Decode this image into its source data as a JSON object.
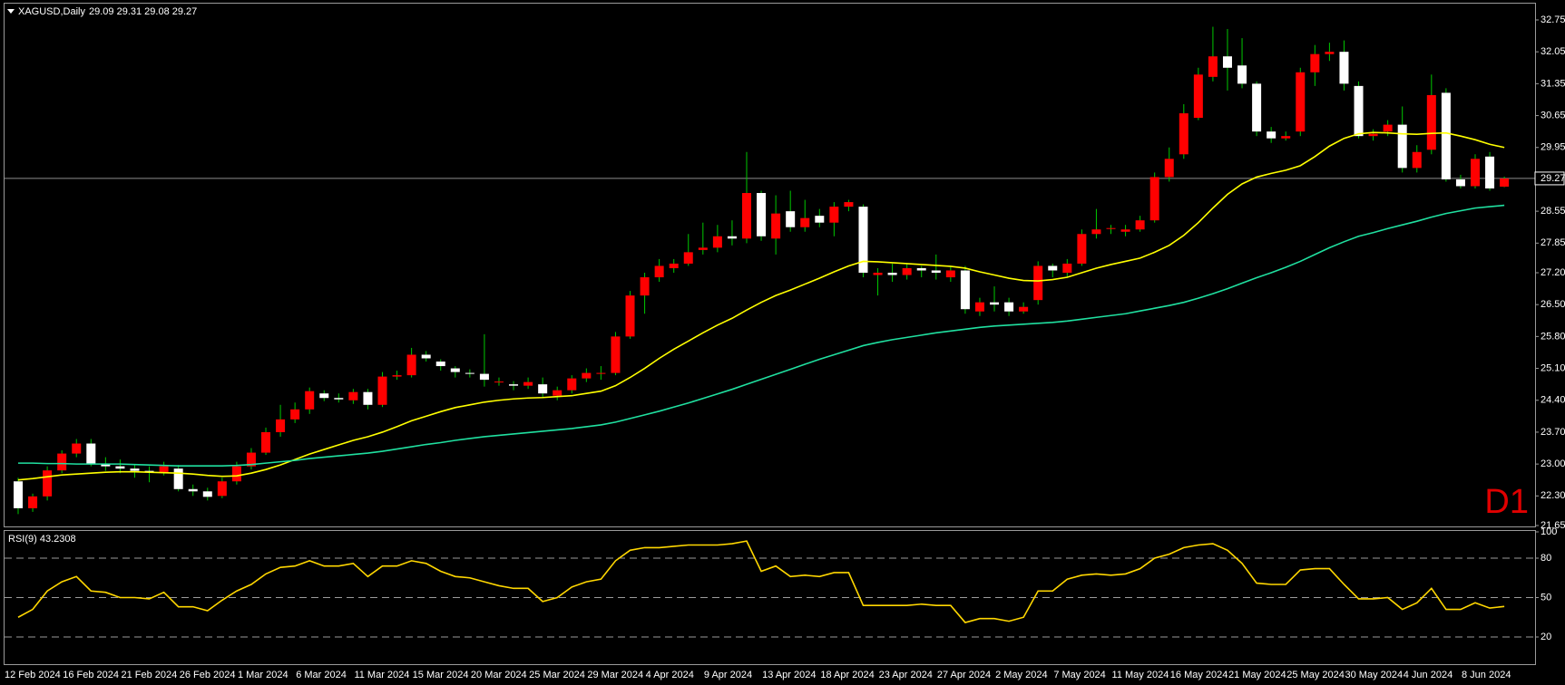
{
  "chart_data": [
    {
      "type": "candlestick",
      "title": "XAGUSD,Daily",
      "subtitle": "29.09 29.31 29.08 29.27",
      "annotation": "D1",
      "categories": [
        "12 Feb 2024",
        null,
        null,
        null,
        "16 Feb 2024",
        null,
        null,
        null,
        "21 Feb 2024",
        null,
        null,
        null,
        "26 Feb 2024",
        null,
        null,
        null,
        "1 Mar 2024",
        null,
        null,
        null,
        "6 Mar 2024",
        null,
        null,
        null,
        "11 Mar 2024",
        null,
        null,
        null,
        "15 Mar 2024",
        null,
        null,
        null,
        "20 Mar 2024",
        null,
        null,
        null,
        "25 Mar 2024",
        null,
        null,
        null,
        "29 Mar 2024",
        null,
        null,
        null,
        "4 Apr 2024",
        null,
        null,
        null,
        "9 Apr 2024",
        null,
        null,
        null,
        "13 Apr 2024",
        null,
        null,
        null,
        "18 Apr 2024",
        null,
        null,
        null,
        "23 Apr 2024",
        null,
        null,
        null,
        "27 Apr 2024",
        null,
        null,
        null,
        "2 May 2024",
        null,
        null,
        null,
        "7 May 2024",
        null,
        null,
        null,
        "11 May 2024",
        null,
        null,
        null,
        "16 May 2024",
        null,
        null,
        null,
        "21 May 2024",
        null,
        null,
        null,
        "25 May 2024",
        null,
        null,
        null,
        "30 May 2024",
        null,
        null,
        null,
        "4 Jun 2024",
        null,
        null,
        null,
        "8 Jun 2024",
        null,
        null
      ],
      "open": [
        22.62,
        22.03,
        22.29,
        22.86,
        23.23,
        23.45,
        23.0,
        22.95,
        22.9,
        22.85,
        22.82,
        22.9,
        22.45,
        22.4,
        22.3,
        22.62,
        22.95,
        23.25,
        23.7,
        23.98,
        24.2,
        24.55,
        24.45,
        24.4,
        24.58,
        24.3,
        24.92,
        24.95,
        25.4,
        25.25,
        25.1,
        25.0,
        24.98,
        24.8,
        24.75,
        24.72,
        24.75,
        24.5,
        24.62,
        24.88,
        24.98,
        25.0,
        25.8,
        26.7,
        27.1,
        27.3,
        27.4,
        27.7,
        27.75,
        28.0,
        27.95,
        28.95,
        27.95,
        28.55,
        28.2,
        28.45,
        28.3,
        28.65,
        28.65,
        27.15,
        27.2,
        27.15,
        27.3,
        27.25,
        27.1,
        27.25,
        26.35,
        26.55,
        26.55,
        26.35,
        26.6,
        27.35,
        27.2,
        27.4,
        28.05,
        28.17,
        28.1,
        28.15,
        28.35,
        29.3,
        29.8,
        30.6,
        31.5,
        31.95,
        31.75,
        31.35,
        30.3,
        30.15,
        30.3,
        31.6,
        32.0,
        32.05,
        31.3,
        30.2,
        30.3,
        30.45,
        29.5,
        29.9,
        31.15,
        29.25,
        29.1,
        29.75,
        29.09
      ],
      "high": [
        22.7,
        22.35,
        22.95,
        23.3,
        23.55,
        23.55,
        23.15,
        23.1,
        23.0,
        22.95,
        23.05,
        22.98,
        22.55,
        22.48,
        22.7,
        23.05,
        23.35,
        23.8,
        24.3,
        24.35,
        24.68,
        24.62,
        24.55,
        24.65,
        24.65,
        25.02,
        25.05,
        25.55,
        25.48,
        25.3,
        25.15,
        25.08,
        25.85,
        24.9,
        24.82,
        24.9,
        24.9,
        24.7,
        24.95,
        25.1,
        25.15,
        25.9,
        26.8,
        27.2,
        27.5,
        27.5,
        28.05,
        28.3,
        28.25,
        28.35,
        29.85,
        29.0,
        28.9,
        29.0,
        28.8,
        28.6,
        28.75,
        28.8,
        28.7,
        27.3,
        27.4,
        27.4,
        27.35,
        27.6,
        27.35,
        27.35,
        26.65,
        26.9,
        26.65,
        26.55,
        27.45,
        27.4,
        27.5,
        28.15,
        28.6,
        28.25,
        28.25,
        28.45,
        29.4,
        29.95,
        30.9,
        31.7,
        32.6,
        32.55,
        32.35,
        31.4,
        30.4,
        30.3,
        31.7,
        32.2,
        32.25,
        32.3,
        31.4,
        30.35,
        30.55,
        30.85,
        30.0,
        31.55,
        31.25,
        29.35,
        29.8,
        29.85,
        29.31
      ],
      "low": [
        21.9,
        21.95,
        22.2,
        22.8,
        23.15,
        22.95,
        22.85,
        22.8,
        22.7,
        22.6,
        22.75,
        22.4,
        22.3,
        22.2,
        22.25,
        22.55,
        22.88,
        23.2,
        23.6,
        23.9,
        24.1,
        24.38,
        24.35,
        24.32,
        24.2,
        24.25,
        24.85,
        24.9,
        25.25,
        25.05,
        24.9,
        24.9,
        24.7,
        24.72,
        24.62,
        24.65,
        24.45,
        24.4,
        24.55,
        24.8,
        24.85,
        24.95,
        25.75,
        26.3,
        27.0,
        27.2,
        27.35,
        27.6,
        27.65,
        27.8,
        27.85,
        27.9,
        27.6,
        28.1,
        28.1,
        28.2,
        28.0,
        28.55,
        27.1,
        26.7,
        27.0,
        27.05,
        27.1,
        27.05,
        27.0,
        26.3,
        26.25,
        26.35,
        26.25,
        26.3,
        26.5,
        27.1,
        27.1,
        27.35,
        27.95,
        28.05,
        28.0,
        28.1,
        28.3,
        29.2,
        29.7,
        30.55,
        31.4,
        31.2,
        31.25,
        30.2,
        30.05,
        30.1,
        30.2,
        31.3,
        31.85,
        31.2,
        30.15,
        30.1,
        30.2,
        29.4,
        29.4,
        29.8,
        29.2,
        29.05,
        29.05,
        29.0,
        29.08
      ],
      "close": [
        22.03,
        22.29,
        22.86,
        23.23,
        23.45,
        23.0,
        22.95,
        22.9,
        22.85,
        22.82,
        22.95,
        22.45,
        22.4,
        22.28,
        22.62,
        22.95,
        23.25,
        23.7,
        23.98,
        24.2,
        24.6,
        24.45,
        24.42,
        24.58,
        24.3,
        24.92,
        24.95,
        25.4,
        25.32,
        25.15,
        25.02,
        24.98,
        24.85,
        24.81,
        24.72,
        24.8,
        24.55,
        24.62,
        24.88,
        25.0,
        25.0,
        25.8,
        26.7,
        27.1,
        27.35,
        27.4,
        27.65,
        27.75,
        28.0,
        27.95,
        28.95,
        28.0,
        28.5,
        28.2,
        28.4,
        28.3,
        28.65,
        28.75,
        27.2,
        27.2,
        27.15,
        27.3,
        27.25,
        27.2,
        27.25,
        26.4,
        26.55,
        26.5,
        26.35,
        26.45,
        27.35,
        27.25,
        27.4,
        28.05,
        28.15,
        28.18,
        28.15,
        28.35,
        29.3,
        29.7,
        30.7,
        31.55,
        31.95,
        31.7,
        31.35,
        30.3,
        30.15,
        30.2,
        31.6,
        32.0,
        32.05,
        31.35,
        30.2,
        30.25,
        30.45,
        29.5,
        29.85,
        31.1,
        29.25,
        29.1,
        29.7,
        29.05,
        29.27
      ],
      "up_color": "#ff0000",
      "down_color": "#ffffff",
      "wick_color": "#00c800",
      "lines": [
        {
          "color": "#ffff00",
          "values": [
            22.65,
            22.68,
            22.72,
            22.76,
            22.78,
            22.8,
            22.82,
            22.83,
            22.83,
            22.82,
            22.81,
            22.8,
            22.78,
            22.75,
            22.73,
            22.74,
            22.8,
            22.88,
            22.98,
            23.1,
            23.22,
            23.32,
            23.42,
            23.52,
            23.6,
            23.7,
            23.82,
            23.95,
            24.05,
            24.15,
            24.24,
            24.3,
            24.36,
            24.4,
            24.43,
            24.45,
            24.46,
            24.48,
            24.5,
            24.55,
            24.6,
            24.72,
            24.9,
            25.1,
            25.32,
            25.52,
            25.7,
            25.88,
            26.05,
            26.2,
            26.38,
            26.55,
            26.7,
            26.82,
            26.95,
            27.08,
            27.22,
            27.35,
            27.45,
            27.44,
            27.42,
            27.4,
            27.38,
            27.36,
            27.34,
            27.3,
            27.22,
            27.15,
            27.08,
            27.03,
            27.02,
            27.05,
            27.1,
            27.2,
            27.3,
            27.38,
            27.45,
            27.52,
            27.65,
            27.8,
            28.02,
            28.3,
            28.62,
            28.92,
            29.15,
            29.3,
            29.38,
            29.45,
            29.55,
            29.75,
            29.98,
            30.15,
            30.25,
            30.28,
            30.27,
            30.25,
            30.24,
            30.26,
            30.27,
            30.2,
            30.12,
            30.02,
            29.95
          ]
        },
        {
          "color": "#20e0a0",
          "values": [
            23.02,
            23.02,
            23.01,
            23.01,
            23.0,
            23.0,
            23.0,
            23.0,
            22.99,
            22.98,
            22.97,
            22.96,
            22.96,
            22.96,
            22.96,
            22.97,
            22.99,
            23.02,
            23.05,
            23.08,
            23.12,
            23.15,
            23.18,
            23.21,
            23.24,
            23.28,
            23.33,
            23.38,
            23.43,
            23.47,
            23.52,
            23.56,
            23.6,
            23.63,
            23.66,
            23.69,
            23.72,
            23.75,
            23.78,
            23.82,
            23.86,
            23.92,
            24.0,
            24.08,
            24.16,
            24.25,
            24.34,
            24.44,
            24.54,
            24.64,
            24.75,
            24.86,
            24.97,
            25.08,
            25.19,
            25.3,
            25.4,
            25.5,
            25.6,
            25.67,
            25.73,
            25.78,
            25.83,
            25.88,
            25.92,
            25.96,
            26.0,
            26.03,
            26.05,
            26.07,
            26.09,
            26.11,
            26.14,
            26.18,
            26.22,
            26.26,
            26.3,
            26.36,
            26.42,
            26.48,
            26.55,
            26.64,
            26.74,
            26.85,
            26.97,
            27.09,
            27.2,
            27.32,
            27.45,
            27.6,
            27.75,
            27.88,
            28.0,
            28.08,
            28.17,
            28.25,
            28.33,
            28.42,
            28.5,
            28.56,
            28.62,
            28.65,
            28.68
          ]
        }
      ],
      "current_price": 29.27,
      "ylim": [
        21.65,
        33.08
      ],
      "yticks": [
        32.75,
        32.05,
        31.35,
        30.65,
        29.95,
        28.55,
        27.85,
        {
          "value": 27.2,
          "label": "27.20"
        },
        {
          "value": 26.5,
          "label": "26.50"
        },
        {
          "value": 25.8,
          "label": "25.80"
        },
        {
          "value": 25.1,
          "label": "25.10"
        },
        {
          "value": 24.4,
          "label": "24.40"
        },
        {
          "value": 23.7,
          "label": "23.70"
        },
        {
          "value": 23,
          "label": "23.00"
        },
        {
          "value": 22.3,
          "label": "22.30"
        },
        21.65
      ]
    },
    {
      "type": "line",
      "title": "RSI(9) 43.2308",
      "color": "#ffd700",
      "values": [
        35,
        41,
        55,
        62,
        66,
        55,
        54,
        50,
        50,
        49,
        54,
        43,
        43,
        40,
        48,
        55,
        60,
        68,
        73,
        74,
        78,
        74,
        74,
        76,
        66,
        74,
        74,
        78,
        76,
        70,
        66,
        65,
        62,
        59,
        57,
        57,
        47,
        50,
        58,
        62,
        64,
        78,
        86,
        88,
        88,
        89,
        90,
        90,
        90,
        91,
        93,
        70,
        74,
        66,
        67,
        66,
        69,
        69,
        44,
        44,
        44,
        44,
        45,
        44,
        44,
        31,
        34,
        34,
        32,
        35,
        55,
        55,
        64,
        67,
        68,
        67,
        68,
        72,
        80,
        83,
        88,
        90,
        91,
        86,
        76,
        61,
        60,
        60,
        71,
        72,
        72,
        60,
        49,
        49,
        50,
        41,
        46,
        57,
        41,
        41,
        46,
        42,
        43.2308
      ],
      "ylim": [
        0,
        100
      ],
      "yticks": [
        100,
        80,
        50,
        20
      ],
      "levels": [
        80,
        50,
        20
      ]
    }
  ]
}
